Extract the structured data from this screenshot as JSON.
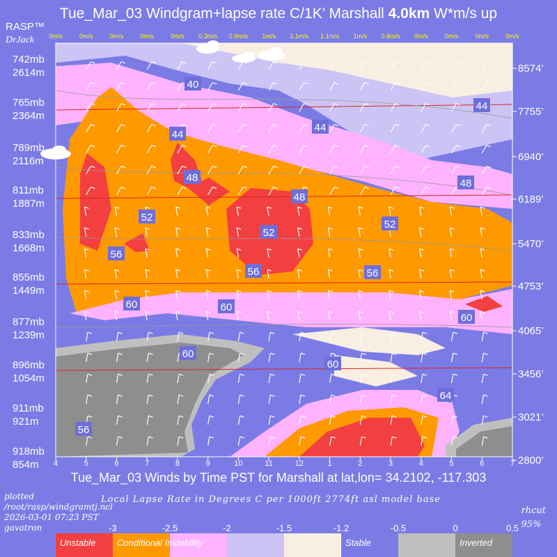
{
  "header": {
    "title_prefix": "Tue_Mar_03 Windgram+lapse rate C/1K’  Marshall ",
    "title_bold": "4.0km",
    "title_suffix": "  W*m/s up",
    "brand": "RASP™",
    "brand_sub": "DrJack"
  },
  "footer": {
    "title": "Tue_Mar_03 Winds by Time PST for Marshall at lat,lon= 34.2102, -117.303",
    "plotted_lines": [
      "plotted",
      "/root/rasp/windgramtj.ncl",
      "2026-03-01 07:23 PST",
      "gavatron"
    ],
    "caption": "Local Lapse Rate in Degrees C per 1000ft  2774ft asl model base",
    "rhcut_label": "rhcut",
    "rhcut_value": "95%"
  },
  "chart_data": {
    "type": "heatmap",
    "x_ticks": [
      "4",
      "5",
      "6",
      "7",
      "8",
      "9",
      "10",
      "11",
      "12",
      "1",
      "2",
      "3",
      "4",
      "5",
      "6",
      "7"
    ],
    "updraft_labels": [
      "0m/s",
      "0m/s",
      "0m/s",
      "0m/s",
      "0m/s",
      "0.3m/s",
      "0.9m/s",
      "1m/s",
      "1.1m/s",
      "1.1m/s",
      "1m/s",
      "0.8m/s",
      "0m/s",
      "0m/s",
      "0m/s",
      "0m/s"
    ],
    "left_axis": [
      {
        "mb": "742mb",
        "m": "2614m"
      },
      {
        "mb": "765mb",
        "m": "2364m"
      },
      {
        "mb": "789mb",
        "m": "2116m"
      },
      {
        "mb": "811mb",
        "m": "1887m"
      },
      {
        "mb": "833mb",
        "m": "1668m"
      },
      {
        "mb": "855mb",
        "m": "1449m"
      },
      {
        "mb": "877mb",
        "m": "1239m"
      },
      {
        "mb": "896mb",
        "m": "1054m"
      },
      {
        "mb": "911mb",
        "m": "921m"
      },
      {
        "mb": "918mb",
        "m": "854m"
      }
    ],
    "right_axis": [
      "8574’",
      "7755’",
      "6940’",
      "6189’",
      "5470’",
      "4753’",
      "4065’",
      "3456’",
      "3021’",
      "2800’"
    ],
    "contour_labels": [
      "40",
      "44",
      "44",
      "44",
      "48",
      "48",
      "48",
      "52",
      "52",
      "52",
      "56",
      "56",
      "56",
      "56",
      "60",
      "60",
      "60",
      "60",
      "60",
      "64"
    ],
    "colorbar": {
      "ticks": [
        "-3",
        "-2.5",
        "-2",
        "-1.5",
        "-1.2",
        "-0.5",
        "0",
        "0.5"
      ],
      "segments": [
        {
          "label": "Unstable",
          "color": "#F24040"
        },
        {
          "label": "Conditional Instability",
          "color": "#FF9900"
        },
        {
          "label": "",
          "color": "#FFB3FF"
        },
        {
          "label": "",
          "color": "#CCC4F5"
        },
        {
          "label": "",
          "color": "#F8EEE2"
        },
        {
          "label": "Stable",
          "color": "#7B7BE6"
        },
        {
          "label": "",
          "color": "#BFBFBF"
        },
        {
          "label": "Inverted",
          "color": "#8E8E8E"
        }
      ]
    }
  }
}
